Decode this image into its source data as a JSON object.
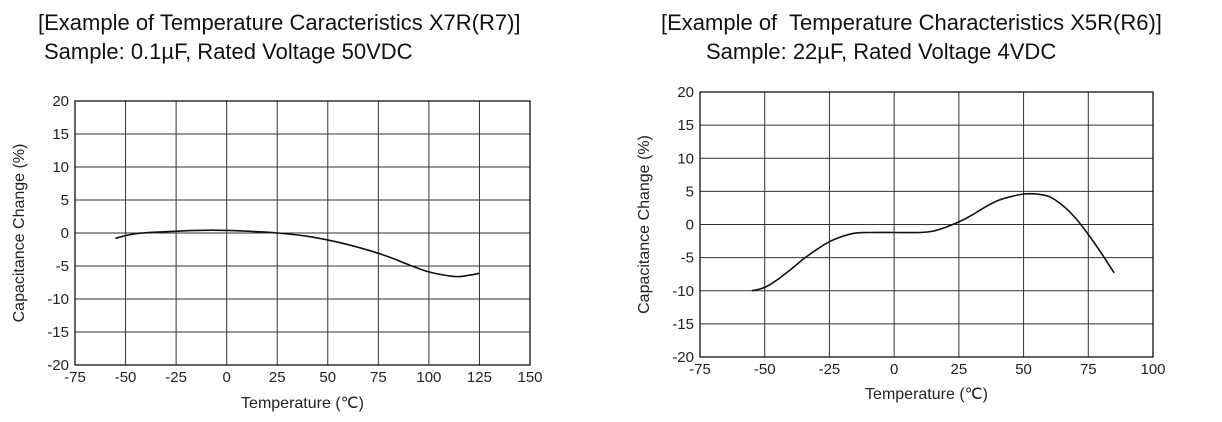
{
  "chart_data": [
    {
      "type": "line",
      "title": "[Example of Temperature Caracteristics X7R(R7)]",
      "subtitle": "Sample: 0.1µF, Rated Voltage 50VDC",
      "xlabel": "Temperature (℃)",
      "ylabel": "Capacitance Change (%)",
      "xlim": [
        -75,
        150
      ],
      "ylim": [
        -20,
        20
      ],
      "xticks": [
        -75,
        -50,
        -25,
        0,
        25,
        50,
        75,
        100,
        125,
        150
      ],
      "yticks": [
        20,
        15,
        10,
        5,
        0,
        -5,
        -10,
        -15,
        -20
      ],
      "grid": true,
      "x": [
        -55,
        -45,
        -30,
        -15,
        0,
        15,
        25,
        40,
        55,
        70,
        80,
        90,
        100,
        110,
        115,
        120,
        125
      ],
      "y": [
        -0.8,
        -0.1,
        0.2,
        0.4,
        0.4,
        0.2,
        0.0,
        -0.5,
        -1.4,
        -2.6,
        -3.6,
        -4.8,
        -5.9,
        -6.5,
        -6.6,
        -6.4,
        -6.1
      ]
    },
    {
      "type": "line",
      "title": "[Example of  Temperature Characteristics X5R(R6)]",
      "subtitle": "Sample: 22µF, Rated Voltage 4VDC",
      "xlabel": "Temperature (℃)",
      "ylabel": "Capacitance Change (%)",
      "xlim": [
        -75,
        100
      ],
      "ylim": [
        -20,
        20
      ],
      "xticks": [
        -75,
        -50,
        -25,
        0,
        25,
        50,
        75,
        100
      ],
      "yticks": [
        20,
        15,
        10,
        5,
        0,
        -5,
        -10,
        -15,
        -20
      ],
      "grid": true,
      "x": [
        -55,
        -50,
        -45,
        -40,
        -35,
        -30,
        -25,
        -20,
        -15,
        -10,
        0,
        10,
        15,
        20,
        25,
        30,
        35,
        40,
        45,
        50,
        55,
        60,
        65,
        70,
        75,
        80,
        85
      ],
      "y": [
        -10.0,
        -9.5,
        -8.3,
        -6.8,
        -5.2,
        -3.8,
        -2.6,
        -1.8,
        -1.3,
        -1.2,
        -1.2,
        -1.2,
        -1.0,
        -0.4,
        0.4,
        1.4,
        2.6,
        3.6,
        4.2,
        4.6,
        4.6,
        4.2,
        2.9,
        1.0,
        -1.5,
        -4.3,
        -7.3
      ]
    }
  ]
}
